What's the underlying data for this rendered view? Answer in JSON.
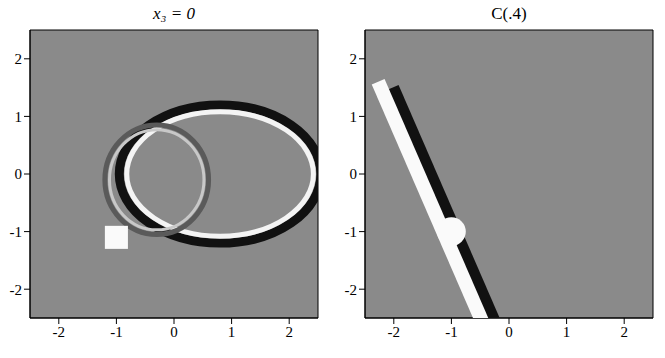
{
  "chart_data": [
    {
      "type": "image",
      "title": "x₃ = 0",
      "xlim": [
        -2.5,
        2.5
      ],
      "ylim": [
        -2.5,
        2.5
      ],
      "xticks": [
        -2,
        -1,
        0,
        1,
        2
      ],
      "yticks": [
        -2,
        -1,
        0,
        1,
        2
      ]
    },
    {
      "type": "image",
      "title": "C(.4)",
      "xlim": [
        -2.5,
        2.5
      ],
      "ylim": [
        -2.5,
        2.5
      ],
      "xticks": [
        -2,
        -1,
        0,
        1,
        2
      ],
      "yticks": [
        -2,
        -1,
        0,
        1,
        2
      ]
    }
  ]
}
